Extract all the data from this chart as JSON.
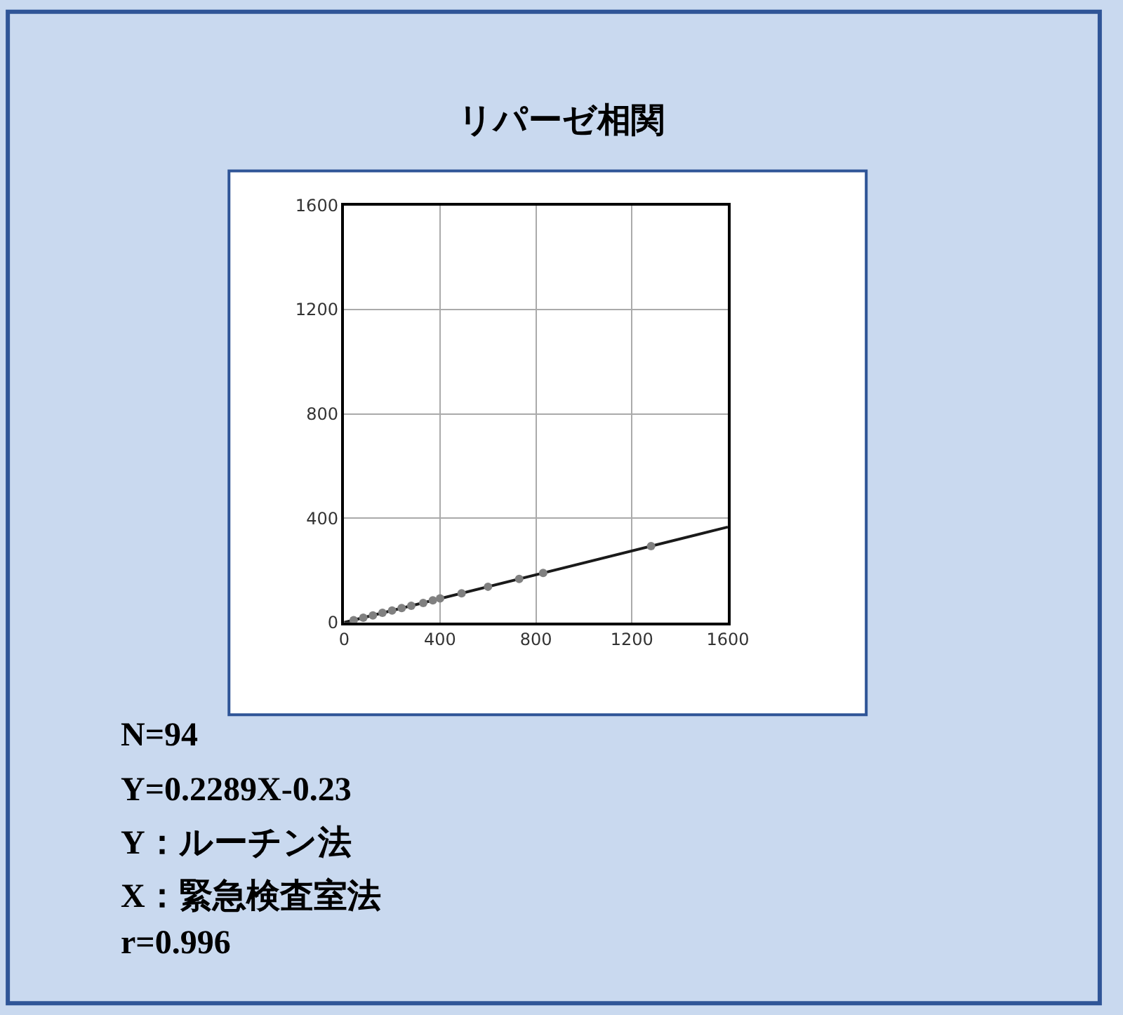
{
  "chart_data": {
    "type": "scatter",
    "title": "リパーゼ相関",
    "series": [
      {
        "type": "line",
        "color": "#1a1a1a",
        "marker": "none",
        "line_style": "solid",
        "x": [
          0,
          1600
        ],
        "values": [
          0,
          366
        ]
      },
      {
        "color": "#808080",
        "marker": "circle",
        "x": [
          40,
          80,
          120,
          160,
          200,
          240,
          280,
          330,
          370,
          400,
          490,
          600,
          730,
          830,
          1280
        ],
        "values": [
          9,
          18,
          27,
          37,
          46,
          55,
          64,
          75,
          85,
          92,
          112,
          137,
          167,
          190,
          293
        ]
      }
    ],
    "xlim": [
      0,
      1600
    ],
    "xticks": [
      0,
      400,
      800,
      1200,
      1600
    ],
    "ylim": [
      0,
      1600
    ],
    "yticks": [
      0,
      400,
      800,
      1200,
      1600
    ],
    "grid": true,
    "legend": false,
    "annotations": [
      "N=94",
      "Y=0.2289X-0.23",
      "Y：ルーチン法",
      "X：緊急検査室法",
      "r=0.996"
    ]
  }
}
